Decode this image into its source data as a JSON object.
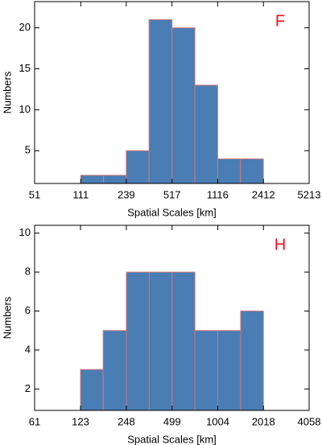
{
  "chart_data": [
    {
      "type": "histogram",
      "annotation": "F",
      "xlabel": "Spatial Scales [km]",
      "ylabel": "Numbers",
      "log_x": true,
      "color": "#4a7db4",
      "edgecolor": "#d47a7a",
      "bins": [
        111,
        163,
        239,
        351,
        517,
        760,
        1116,
        1640,
        2412
      ],
      "values": [
        2,
        2,
        5,
        21,
        20,
        13,
        4,
        4
      ],
      "xlim": [
        51,
        5213
      ],
      "xticks": [
        51,
        111,
        239,
        517,
        1116,
        2412,
        5213
      ],
      "ylim": [
        1,
        23.2
      ],
      "yticks": [
        5,
        10,
        15,
        20
      ]
    },
    {
      "type": "histogram",
      "annotation": "H",
      "xlabel": "Spatial Scales [km]",
      "ylabel": "Numbers",
      "log_x": true,
      "color": "#4a7db4",
      "edgecolor": "#d47a7a",
      "bins": [
        123,
        174,
        248,
        352,
        499,
        708,
        1004,
        1424,
        2018
      ],
      "values": [
        3,
        5,
        8,
        8,
        8,
        5,
        5,
        6
      ],
      "xlim": [
        61,
        4058
      ],
      "xticks": [
        61,
        123,
        248,
        499,
        1004,
        2018,
        4058
      ],
      "ylim": [
        0.9,
        10.4
      ],
      "yticks": [
        2,
        4,
        6,
        8,
        10
      ]
    }
  ]
}
